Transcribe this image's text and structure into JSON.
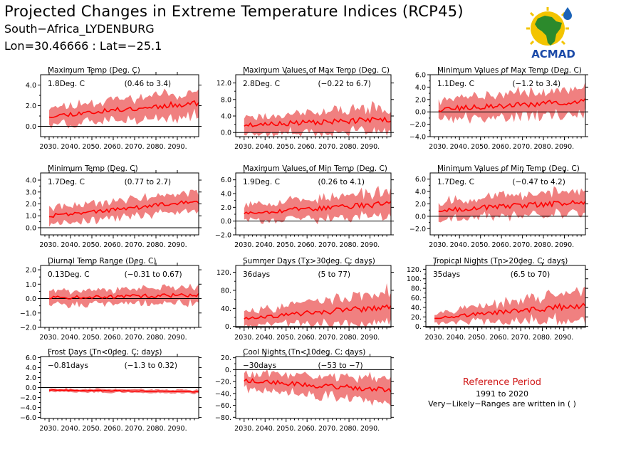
{
  "header": {
    "title": "Projected Changes in Extreme Temperature Indices (RCP45)",
    "station": "South−Africa_LYDENBURG",
    "coords": "Lon=30.46666 : Lat=−25.1"
  },
  "logo": {
    "text": "ACMAD",
    "icon": "africa-map-logo"
  },
  "reference": {
    "title": "Reference Period",
    "years": "1991 to 2020",
    "note": "Very−Likely−Ranges are written in ( )"
  },
  "colors": {
    "band": "#f08080",
    "line": "#ff0000",
    "zero": "#000000",
    "reference_title": "#d01818"
  },
  "chart_data": [
    {
      "type": "area",
      "title": "Maximum Temp (Deg. C)",
      "mean_change": "1.8Deg. C",
      "range": "(0.46 to 3.4)",
      "x_ticks": [
        "2030.",
        "2040.",
        "2050.",
        "2060.",
        "2070.",
        "2080.",
        "2090."
      ],
      "y_ticks": [
        "0.0",
        "2.0",
        "4.0"
      ],
      "y_tick_values": [
        0,
        2,
        4
      ],
      "ylim": [
        -1.0,
        5.0
      ],
      "xlim": [
        2026,
        2100
      ],
      "x_years": [
        2030,
        2100
      ],
      "trend_y": [
        1.0,
        2.3
      ],
      "spread": [
        0.9,
        1.3
      ],
      "band_seed": 11
    },
    {
      "type": "area",
      "title": "Maximum Values of Max Temp (Deg. C)",
      "mean_change": "2.8Deg. C",
      "range": "(−0.22 to 6.7)",
      "x_ticks": [
        "2030.",
        "2040.",
        "2050.",
        "2060.",
        "2070.",
        "2080.",
        "2090."
      ],
      "y_ticks": [
        "0.0",
        "4.0",
        "8.0",
        "12.0"
      ],
      "y_tick_values": [
        0,
        4,
        8,
        12
      ],
      "ylim": [
        -1.0,
        14.0
      ],
      "xlim": [
        2026,
        2100
      ],
      "x_years": [
        2030,
        2100
      ],
      "trend_y": [
        1.8,
        3.2
      ],
      "spread": [
        2.2,
        3.2
      ],
      "band_seed": 23
    },
    {
      "type": "area",
      "title": "Minimum Values of Max Temp (Deg. C)",
      "mean_change": "1.1Deg. C",
      "range": "(−1.2 to 3.4)",
      "x_ticks": [
        "2030.",
        "2040.",
        "2050.",
        "2060.",
        "2070.",
        "2080.",
        "2090."
      ],
      "y_ticks": [
        "−4.0",
        "−2.0",
        "0.0",
        "2.0",
        "4.0",
        "6.0"
      ],
      "y_tick_values": [
        -4,
        -2,
        0,
        2,
        4,
        6
      ],
      "ylim": [
        -4.0,
        6.0
      ],
      "xlim": [
        2026,
        2100
      ],
      "x_years": [
        2030,
        2100
      ],
      "trend_y": [
        0.4,
        1.7
      ],
      "spread": [
        1.8,
        2.2
      ],
      "band_seed": 37
    },
    {
      "type": "area",
      "title": "Minimum Temp (Deg. C)",
      "mean_change": "1.7Deg. C",
      "range": "(0.77 to 2.7)",
      "x_ticks": [
        "2030.",
        "2040.",
        "2050.",
        "2060.",
        "2070.",
        "2080.",
        "2090."
      ],
      "y_ticks": [
        "0.0",
        "1.0",
        "2.0",
        "3.0",
        "4.0"
      ],
      "y_tick_values": [
        0,
        1,
        2,
        3,
        4
      ],
      "ylim": [
        -0.6,
        4.6
      ],
      "xlim": [
        2026,
        2100
      ],
      "x_years": [
        2030,
        2100
      ],
      "trend_y": [
        1.0,
        2.2
      ],
      "spread": [
        0.7,
        0.9
      ],
      "band_seed": 41
    },
    {
      "type": "area",
      "title": "Maximum Values of Min Temp (Deg. C)",
      "mean_change": "1.9Deg. C",
      "range": "(0.26 to 4.1)",
      "x_ticks": [
        "2030.",
        "2040.",
        "2050.",
        "2060.",
        "2070.",
        "2080.",
        "2090."
      ],
      "y_ticks": [
        "−2.0",
        "0.0",
        "2.0",
        "4.0",
        "6.0"
      ],
      "y_tick_values": [
        -2,
        0,
        2,
        4,
        6
      ],
      "ylim": [
        -2.0,
        7.0
      ],
      "xlim": [
        2026,
        2100
      ],
      "x_years": [
        2030,
        2100
      ],
      "trend_y": [
        1.2,
        2.5
      ],
      "spread": [
        1.3,
        1.9
      ],
      "band_seed": 53
    },
    {
      "type": "area",
      "title": "Minimum Values of Min Temp (Deg. C)",
      "mean_change": "1.7Deg. C",
      "range": "(−0.47 to 4.2)",
      "x_ticks": [
        "2030.",
        "2040.",
        "2050.",
        "2060.",
        "2070.",
        "2080.",
        "2090."
      ],
      "y_ticks": [
        "−2.0",
        "0.0",
        "2.0",
        "4.0",
        "6.0"
      ],
      "y_tick_values": [
        -2,
        0,
        2,
        4,
        6
      ],
      "ylim": [
        -3.0,
        7.0
      ],
      "xlim": [
        2026,
        2100
      ],
      "x_years": [
        2030,
        2100
      ],
      "trend_y": [
        1.0,
        2.3
      ],
      "spread": [
        1.6,
        2.0
      ],
      "band_seed": 67
    },
    {
      "type": "area",
      "title": "Diurnal Temp Range (Deg. C)",
      "mean_change": "0.13Deg. C",
      "range": "(−0.31 to 0.67)",
      "x_ticks": [
        "2030.",
        "2040.",
        "2050.",
        "2060.",
        "2070.",
        "2080.",
        "2090."
      ],
      "y_ticks": [
        "−2.0",
        "−1.0",
        "0.0",
        "1.0",
        "2.0"
      ],
      "y_tick_values": [
        -2,
        -1,
        0,
        1,
        2
      ],
      "ylim": [
        -2.0,
        2.3
      ],
      "xlim": [
        2026,
        2100
      ],
      "x_years": [
        2030,
        2100
      ],
      "trend_y": [
        0.05,
        0.25
      ],
      "spread": [
        0.5,
        0.6
      ],
      "band_seed": 71
    },
    {
      "type": "area",
      "title": "Summer Days (Tx>30deg. C; days)",
      "mean_change": "36days",
      "range": "(5 to 77)",
      "x_ticks": [
        "2030.",
        "2040.",
        "2050.",
        "2060.",
        "2070.",
        "2080.",
        "2090."
      ],
      "y_ticks": [
        "0.",
        "40.",
        "80.",
        "120."
      ],
      "y_tick_values": [
        0,
        40,
        80,
        120
      ],
      "ylim": [
        -2,
        135
      ],
      "xlim": [
        2026,
        2100
      ],
      "x_years": [
        2030,
        2100
      ],
      "trend_y": [
        18,
        45
      ],
      "spread": [
        15,
        38
      ],
      "band_seed": 83
    },
    {
      "type": "area",
      "title": "Tropical Nights (Tn>20deg. C; days)",
      "mean_change": "35days",
      "range": "(6.5 to 70)",
      "x_ticks": [
        "2030.",
        "2040.",
        "2050.",
        "2060.",
        "2070.",
        "2080.",
        "2090."
      ],
      "y_ticks": [
        "0.",
        "20.",
        "40.",
        "60.",
        "80.",
        "100.",
        "120."
      ],
      "y_tick_values": [
        0,
        20,
        40,
        60,
        80,
        100,
        120
      ],
      "ylim": [
        -2,
        128
      ],
      "xlim": [
        2026,
        2100
      ],
      "x_years": [
        2030,
        2100
      ],
      "trend_y": [
        18,
        45
      ],
      "spread": [
        12,
        32
      ],
      "band_seed": 97
    },
    {
      "type": "area",
      "title": "Frost Days (Tn<0deg. C; days)",
      "mean_change": "−0.81days",
      "range": "(−1.3 to 0.32)",
      "x_ticks": [
        "2030.",
        "2040.",
        "2050.",
        "2060.",
        "2070.",
        "2080.",
        "2090."
      ],
      "y_ticks": [
        "−6.0",
        "−4.0",
        "−2.0",
        "0.0",
        "2.0",
        "4.0",
        "6.0"
      ],
      "y_tick_values": [
        -6,
        -4,
        -2,
        0,
        2,
        4,
        6
      ],
      "ylim": [
        -6.2,
        6.2
      ],
      "xlim": [
        2026,
        2100
      ],
      "x_years": [
        2030,
        2100
      ],
      "trend_y": [
        -0.5,
        -0.85
      ],
      "spread": [
        0.35,
        0.4
      ],
      "band_seed": 101
    },
    {
      "type": "area",
      "title": "Cool Nights (Tn<10deg. C; days)",
      "mean_change": "−30days",
      "range": "(−53 to −7)",
      "x_ticks": [
        "2030.",
        "2040.",
        "2050.",
        "2060.",
        "2070.",
        "2080.",
        "2090."
      ],
      "y_ticks": [
        "−80.",
        "−60.",
        "−40.",
        "−20.",
        "0.",
        "20."
      ],
      "y_tick_values": [
        -80,
        -60,
        -40,
        -20,
        0,
        20
      ],
      "ylim": [
        -82,
        22
      ],
      "xlim": [
        2026,
        2100
      ],
      "x_years": [
        2030,
        2100
      ],
      "trend_y": [
        -18,
        -35
      ],
      "spread": [
        14,
        22
      ],
      "band_seed": 113
    }
  ]
}
